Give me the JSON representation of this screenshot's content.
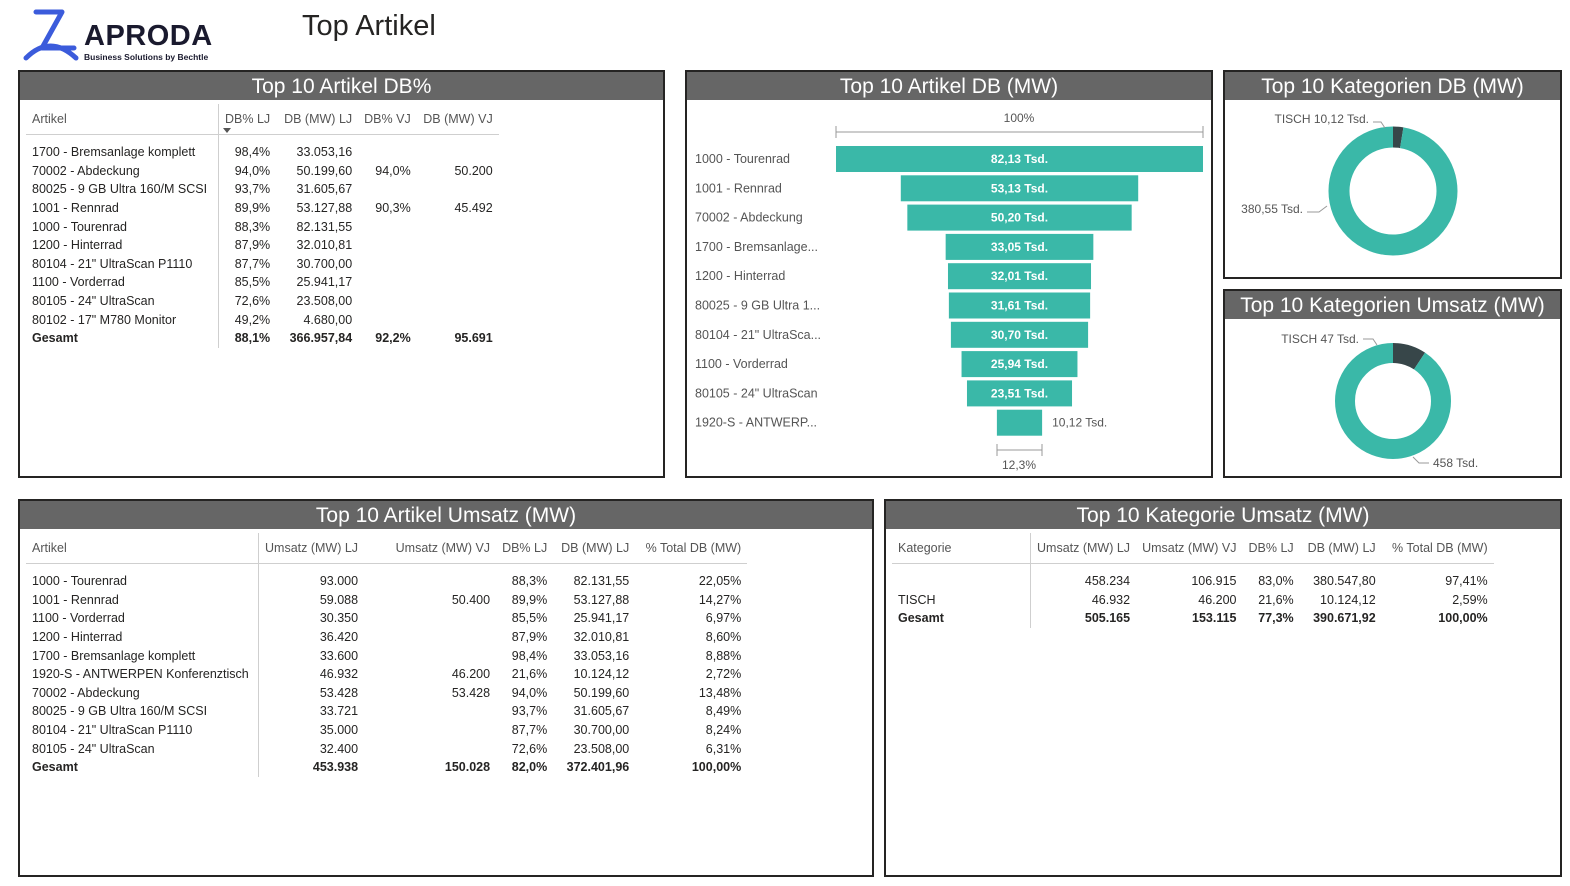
{
  "header": {
    "logo_name": "APRODA",
    "logo_tagline": "Business Solutions by Bechtle",
    "page_title": "Top Artikel"
  },
  "colors": {
    "teal": "#3ab8a8",
    "dark": "#374649",
    "panel_header": "#666666"
  },
  "artikel_db_pct": {
    "title": "Top 10 Artikel DB%",
    "columns": [
      "Artikel",
      "DB% LJ",
      "DB (MW) LJ",
      "DB% VJ",
      "DB (MW) VJ"
    ],
    "rows": [
      [
        "1700 - Bremsanlage komplett",
        "98,4%",
        "33.053,16",
        "",
        ""
      ],
      [
        "70002 - Abdeckung",
        "94,0%",
        "50.199,60",
        "94,0%",
        "50.200"
      ],
      [
        "80025 - 9 GB Ultra 160/M SCSI",
        "93,7%",
        "31.605,67",
        "",
        ""
      ],
      [
        "1001 - Rennrad",
        "89,9%",
        "53.127,88",
        "90,3%",
        "45.492"
      ],
      [
        "1000 - Tourenrad",
        "88,3%",
        "82.131,55",
        "",
        ""
      ],
      [
        "1200 - Hinterrad",
        "87,9%",
        "32.010,81",
        "",
        ""
      ],
      [
        "80104 - 21\" UltraScan P1110",
        "87,7%",
        "30.700,00",
        "",
        ""
      ],
      [
        "1100 - Vorderrad",
        "85,5%",
        "25.941,17",
        "",
        ""
      ],
      [
        "80105 - 24\" UltraScan",
        "72,6%",
        "23.508,00",
        "",
        ""
      ],
      [
        "80102 - 17\" M780 Monitor",
        "49,2%",
        "4.680,00",
        "",
        ""
      ]
    ],
    "total": [
      "Gesamt",
      "88,1%",
      "366.957,84",
      "92,2%",
      "95.691"
    ]
  },
  "funnel": {
    "title": "Top 10 Artikel DB (MW)",
    "top_label": "100%",
    "bottom_label": "12,3%",
    "chart_data": {
      "type": "bar",
      "categories": [
        "1000 - Tourenrad",
        "1001 - Rennrad",
        "70002 - Abdeckung",
        "1700 - Bremsanlage...",
        "1200 - Hinterrad",
        "80025 - 9 GB Ultra 1...",
        "80104 - 21\" UltraSca...",
        "1100 - Vorderrad",
        "80105 - 24\" UltraScan",
        "1920-S - ANTWERP..."
      ],
      "values": [
        82.13,
        53.13,
        50.2,
        33.05,
        32.01,
        31.61,
        30.7,
        25.94,
        23.51,
        10.12
      ],
      "labels": [
        "82,13 Tsd.",
        "53,13 Tsd.",
        "50,20 Tsd.",
        "33,05 Tsd.",
        "32,01 Tsd.",
        "31,61 Tsd.",
        "30,70 Tsd.",
        "25,94 Tsd.",
        "23,51 Tsd.",
        "10,12 Tsd."
      ],
      "color": "#3ab8a8"
    }
  },
  "donut_db": {
    "title": "Top 10 Kategorien DB (MW)",
    "chart_data": {
      "type": "pie",
      "slices": [
        {
          "label": "TISCH 10,12 Tsd.",
          "value": 10.12,
          "color": "#374649"
        },
        {
          "label": "380,55 Tsd.",
          "value": 380.55,
          "color": "#3ab8a8"
        }
      ]
    }
  },
  "donut_umsatz": {
    "title": "Top 10 Kategorien Umsatz (MW)",
    "chart_data": {
      "type": "pie",
      "slices": [
        {
          "label": "TISCH 47 Tsd.",
          "value": 47,
          "color": "#374649"
        },
        {
          "label": "458 Tsd.",
          "value": 458,
          "color": "#3ab8a8"
        }
      ]
    }
  },
  "artikel_umsatz": {
    "title": "Top 10 Artikel Umsatz (MW)",
    "columns": [
      "Artikel",
      "Umsatz (MW) LJ",
      "Umsatz (MW) VJ",
      "DB% LJ",
      "DB (MW) LJ",
      "% Total DB (MW)"
    ],
    "rows": [
      [
        "1000 - Tourenrad",
        "93.000",
        "",
        "88,3%",
        "82.131,55",
        "22,05%"
      ],
      [
        "1001 - Rennrad",
        "59.088",
        "50.400",
        "89,9%",
        "53.127,88",
        "14,27%"
      ],
      [
        "1100 - Vorderrad",
        "30.350",
        "",
        "85,5%",
        "25.941,17",
        "6,97%"
      ],
      [
        "1200 - Hinterrad",
        "36.420",
        "",
        "87,9%",
        "32.010,81",
        "8,60%"
      ],
      [
        "1700 - Bremsanlage komplett",
        "33.600",
        "",
        "98,4%",
        "33.053,16",
        "8,88%"
      ],
      [
        "1920-S - ANTWERPEN Konferenztisch",
        "46.932",
        "46.200",
        "21,6%",
        "10.124,12",
        "2,72%"
      ],
      [
        "70002 - Abdeckung",
        "53.428",
        "53.428",
        "94,0%",
        "50.199,60",
        "13,48%"
      ],
      [
        "80025 - 9 GB Ultra 160/M SCSI",
        "33.721",
        "",
        "93,7%",
        "31.605,67",
        "8,49%"
      ],
      [
        "80104 - 21\" UltraScan P1110",
        "35.000",
        "",
        "87,7%",
        "30.700,00",
        "8,24%"
      ],
      [
        "80105 - 24\" UltraScan",
        "32.400",
        "",
        "72,6%",
        "23.508,00",
        "6,31%"
      ]
    ],
    "total": [
      "Gesamt",
      "453.938",
      "150.028",
      "82,0%",
      "372.401,96",
      "100,00%"
    ]
  },
  "kategorie_umsatz": {
    "title": "Top 10 Kategorie Umsatz (MW)",
    "columns": [
      "Kategorie",
      "Umsatz (MW) LJ",
      "Umsatz (MW) VJ",
      "DB% LJ",
      "DB (MW) LJ",
      "% Total DB (MW)"
    ],
    "rows": [
      [
        "",
        "458.234",
        "106.915",
        "83,0%",
        "380.547,80",
        "97,41%"
      ],
      [
        "TISCH",
        "46.932",
        "46.200",
        "21,6%",
        "10.124,12",
        "2,59%"
      ]
    ],
    "total": [
      "Gesamt",
      "505.165",
      "153.115",
      "77,3%",
      "390.671,92",
      "100,00%"
    ]
  }
}
